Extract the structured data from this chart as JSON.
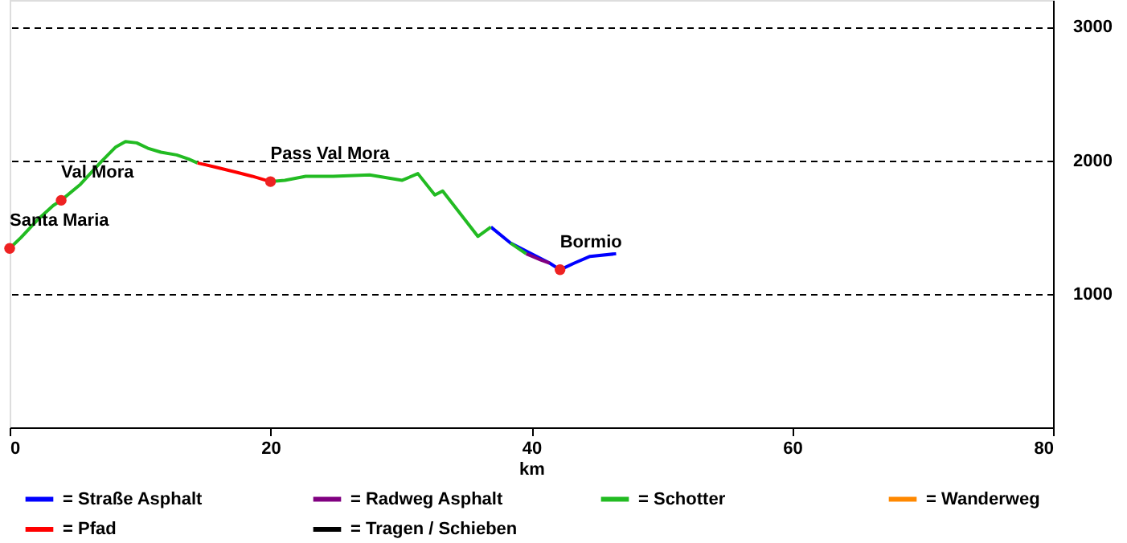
{
  "chart_data": {
    "type": "line",
    "xlabel": "km",
    "xlim": [
      0,
      80
    ],
    "xticks": [
      0,
      20,
      40,
      60,
      80
    ],
    "ylim": [
      0,
      3200
    ],
    "yticks": [
      1000,
      2000,
      3000
    ],
    "grid": "y",
    "legend": "bottom",
    "line_style": "solid",
    "series": [
      {
        "name": "= Straße Asphalt",
        "color": "#0000ff",
        "x": [
          36.9,
          38.4,
          41.4,
          42.2,
          43.3,
          44.5,
          46.5
        ],
        "values": [
          1500,
          1380,
          1230,
          1180,
          1230,
          1280,
          1300
        ]
      },
      {
        "name": "= Radweg Asphalt",
        "color": "#800080",
        "x": [
          39.6,
          40.8,
          41.4
        ],
        "values": [
          1300,
          1250,
          1230
        ]
      },
      {
        "name": "= Schotter",
        "color": "#22bb22",
        "x": [
          0,
          0.86,
          2.1,
          3.33,
          3.95,
          5.43,
          7.03,
          8.14,
          8.88,
          9.74,
          10.6,
          11.6,
          12.8,
          13.7,
          14.4,
          17,
          20,
          21.1,
          22.7,
          24.8,
          27.6,
          30.1,
          31.3,
          32.6,
          33.2,
          35.9,
          36.9,
          37.5,
          38.4,
          39.6
        ],
        "values": [
          1340,
          1420,
          1550,
          1660,
          1700,
          1820,
          1990,
          2100,
          2140,
          2130,
          2090,
          2060,
          2040,
          2010,
          1980,
          null,
          1840,
          1850,
          1880,
          1880,
          1890,
          1850,
          1900,
          1740,
          1770,
          1430,
          1500,
          null,
          1380,
          1300
        ]
      },
      {
        "name": "= Wanderweg",
        "color": "#ff8800"
      },
      {
        "name": "= Pfad",
        "color": "#ff0000",
        "x": [
          14.4,
          15.7,
          17.4,
          18.6,
          20
        ],
        "values": [
          1980,
          1950,
          1910,
          1880,
          1840
        ]
      },
      {
        "name": "= Tragen / Schieben",
        "color": "#000000"
      }
    ],
    "annotations": [
      {
        "text": "Santa Maria",
        "x": 0,
        "y": 1340
      },
      {
        "text": "Val Mora",
        "x": 3.95,
        "y": 1700
      },
      {
        "text": "Pass Val Mora",
        "x": 20,
        "y": 1840
      },
      {
        "text": "Bormio",
        "x": 42.2,
        "y": 1180
      }
    ]
  }
}
